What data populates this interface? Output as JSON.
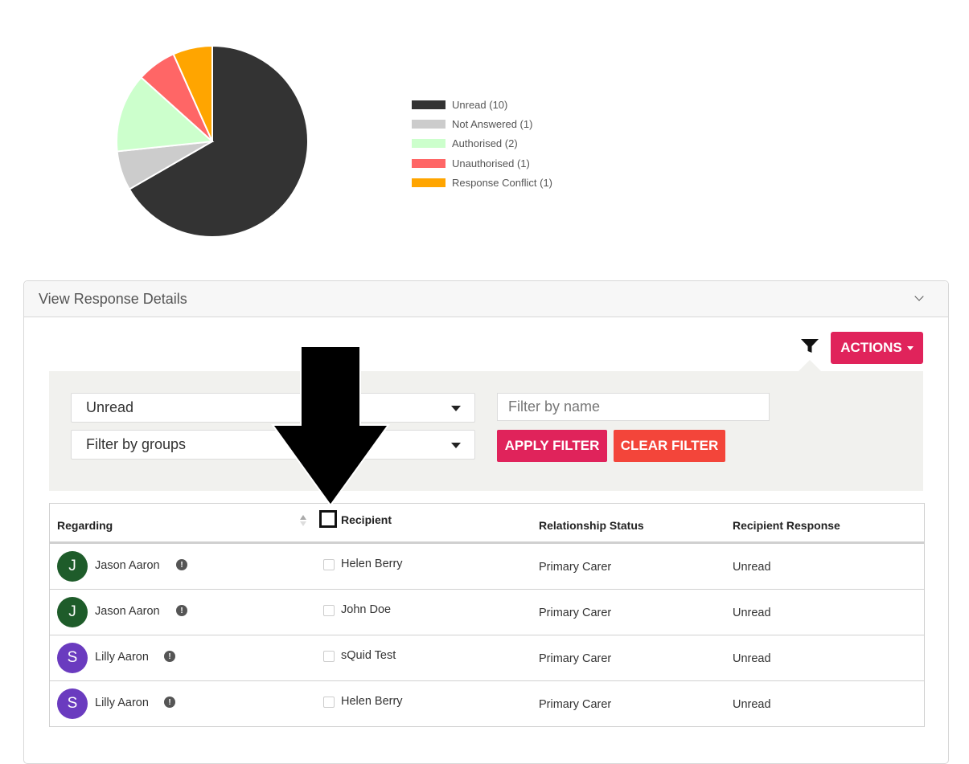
{
  "chart_data": {
    "type": "pie",
    "title": "",
    "slices": [
      {
        "label": "Unread (10)",
        "value": 10,
        "color": "#333333"
      },
      {
        "label": "Not Answered (1)",
        "value": 1,
        "color": "#cccccc"
      },
      {
        "label": "Authorised (2)",
        "value": 2,
        "color": "#ccffcc"
      },
      {
        "label": "Unauthorised (1)",
        "value": 1,
        "color": "#ff6666"
      },
      {
        "label": "Response Conflict (1)",
        "value": 1,
        "color": "#ffa500"
      }
    ],
    "legend_position": "right"
  },
  "panel": {
    "title": "View Response Details",
    "actions_label": "ACTIONS"
  },
  "filters": {
    "status_selected": "Unread",
    "groups_selected": "Filter by groups",
    "name_placeholder": "Filter by name",
    "apply_label": "APPLY FILTER",
    "clear_label": "CLEAR FILTER"
  },
  "table": {
    "headers": {
      "regarding": "Regarding",
      "recipient": "Recipient",
      "relationship": "Relationship Status",
      "response": "Recipient Response"
    },
    "rows": [
      {
        "initial": "J",
        "avatar_color": "#1e5c2a",
        "regarding": "Jason Aaron",
        "recipient": "Helen Berry",
        "relationship": "Primary Carer",
        "response": "Unread"
      },
      {
        "initial": "J",
        "avatar_color": "#1e5c2a",
        "regarding": "Jason Aaron",
        "recipient": "John Doe",
        "relationship": "Primary Carer",
        "response": "Unread"
      },
      {
        "initial": "S",
        "avatar_color": "#6a3bbf",
        "regarding": "Lilly Aaron",
        "recipient": "sQuid Test",
        "relationship": "Primary Carer",
        "response": "Unread"
      },
      {
        "initial": "S",
        "avatar_color": "#6a3bbf",
        "regarding": "Lilly Aaron",
        "recipient": "Helen Berry",
        "relationship": "Primary Carer",
        "response": "Unread"
      }
    ]
  },
  "colors": {
    "accent": "#e0235b",
    "clear": "#f3453a"
  }
}
